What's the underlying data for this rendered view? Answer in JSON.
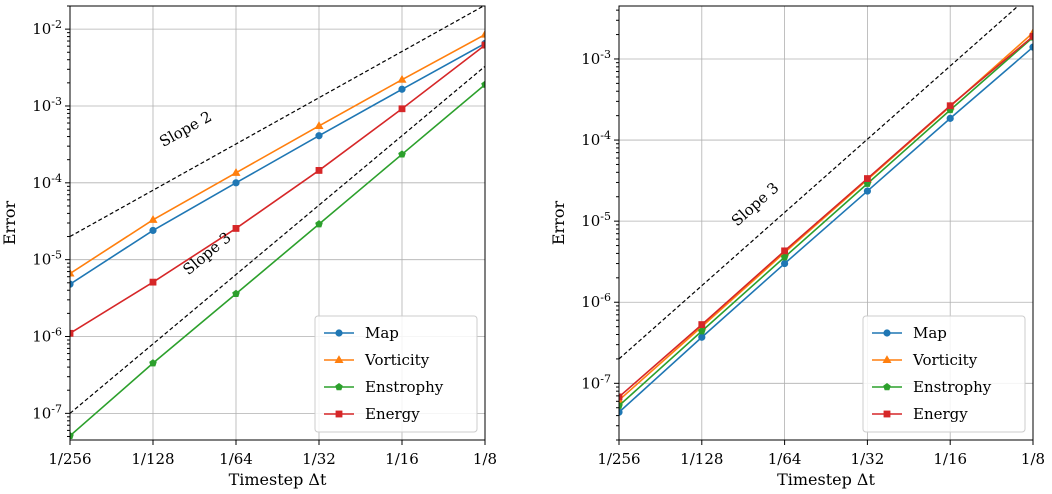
{
  "colors": {
    "Map": "#1f77b4",
    "Vorticity": "#ff7f0e",
    "Enstrophy": "#2ca02c",
    "Energy": "#d62728",
    "reference": "#000000"
  },
  "chart_data": [
    {
      "type": "line",
      "xscale": "log2",
      "yscale": "log",
      "grid": true,
      "xlabel": "Timestep Δt",
      "ylabel": "Error",
      "x": [
        0.00390625,
        0.0078125,
        0.015625,
        0.03125,
        0.0625,
        0.125
      ],
      "xticklabels": [
        "1/256",
        "1/128",
        "1/64",
        "1/32",
        "1/16",
        "1/8"
      ],
      "xlim": [
        0.00390625,
        0.125
      ],
      "ylim": [
        4.5e-08,
        0.02
      ],
      "yticks": [
        {
          "value": 1e-07,
          "base": "10",
          "exp": "-7"
        },
        {
          "value": 1e-06,
          "base": "10",
          "exp": "-6"
        },
        {
          "value": 1e-05,
          "base": "10",
          "exp": "-5"
        },
        {
          "value": 0.0001,
          "base": "10",
          "exp": "-4"
        },
        {
          "value": 0.001,
          "base": "10",
          "exp": "-3"
        },
        {
          "value": 0.01,
          "base": "10",
          "exp": "-2"
        }
      ],
      "legend_position": "lower-right",
      "series": [
        {
          "name": "Map",
          "marker": "circle",
          "values": [
            4.8e-06,
            2.4e-05,
            0.0001,
            0.00041,
            0.00165,
            0.0065
          ]
        },
        {
          "name": "Vorticity",
          "marker": "triangle",
          "values": [
            6.6e-06,
            3.3e-05,
            0.000135,
            0.00055,
            0.0022,
            0.0085
          ]
        },
        {
          "name": "Enstrophy",
          "marker": "pentagon",
          "values": [
            5.1e-08,
            4.5e-07,
            3.6e-06,
            2.9e-05,
            0.000235,
            0.0019
          ]
        },
        {
          "name": "Energy",
          "marker": "square",
          "values": [
            1.1e-06,
            5.1e-06,
            2.55e-05,
            0.000145,
            0.00092,
            0.0062
          ]
        }
      ],
      "reference_lines": [
        {
          "label": "Slope 2",
          "points": [
            [
              0.00390625,
              2e-05
            ],
            [
              0.125,
              0.0205
            ]
          ],
          "label_at": [
            0.0085,
            0.00029
          ]
        },
        {
          "label": "Slope 3",
          "points": [
            [
              0.00390625,
              1e-07
            ],
            [
              0.125,
              0.00328
            ]
          ],
          "label_at": [
            0.0105,
            6.2e-06
          ]
        }
      ]
    },
    {
      "type": "line",
      "xscale": "log2",
      "yscale": "log",
      "grid": true,
      "xlabel": "Timestep Δt",
      "ylabel": "Error",
      "x": [
        0.00390625,
        0.0078125,
        0.015625,
        0.03125,
        0.0625,
        0.125
      ],
      "xticklabels": [
        "1/256",
        "1/128",
        "1/64",
        "1/32",
        "1/16",
        "1/8"
      ],
      "xlim": [
        0.00390625,
        0.125
      ],
      "ylim": [
        2e-08,
        0.0045
      ],
      "yticks": [
        {
          "value": 1e-07,
          "base": "10",
          "exp": "-7"
        },
        {
          "value": 1e-06,
          "base": "10",
          "exp": "-6"
        },
        {
          "value": 1e-05,
          "base": "10",
          "exp": "-5"
        },
        {
          "value": 0.0001,
          "base": "10",
          "exp": "-4"
        },
        {
          "value": 0.001,
          "base": "10",
          "exp": "-3"
        }
      ],
      "legend_position": "lower-right",
      "series": [
        {
          "name": "Map",
          "marker": "circle",
          "values": [
            4.4e-08,
            3.7e-07,
            3e-06,
            2.35e-05,
            0.000185,
            0.0014
          ]
        },
        {
          "name": "Vorticity",
          "marker": "triangle",
          "values": [
            6.2e-08,
            5e-07,
            4.1e-06,
            3.25e-05,
            0.00026,
            0.0021
          ]
        },
        {
          "name": "Enstrophy",
          "marker": "pentagon",
          "values": [
            5.3e-08,
            4.4e-07,
            3.6e-06,
            2.9e-05,
            0.000235,
            0.00185
          ]
        },
        {
          "name": "Energy",
          "marker": "square",
          "values": [
            6.8e-08,
            5.3e-07,
            4.3e-06,
            3.35e-05,
            0.000265,
            0.0019
          ]
        }
      ],
      "reference_lines": [
        {
          "label": "Slope 3",
          "points": [
            [
              0.00390625,
              2e-07
            ],
            [
              0.125,
              0.00655
            ]
          ],
          "label_at": [
            0.0105,
            8.5e-06
          ]
        }
      ]
    }
  ]
}
